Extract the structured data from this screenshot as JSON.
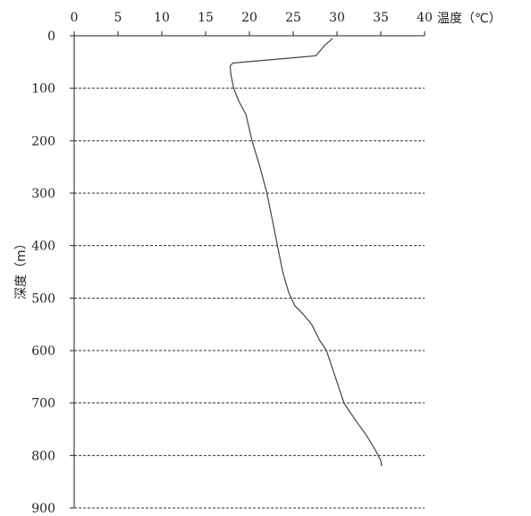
{
  "chart_data": {
    "type": "line",
    "title": "",
    "xlabel": "温度（℃）",
    "ylabel": "深度（m）",
    "x_axis_position": "top",
    "y_axis_inverted": true,
    "xlim": [
      0,
      40
    ],
    "ylim": [
      0,
      900
    ],
    "xticks": [
      0,
      5,
      10,
      15,
      20,
      25,
      30,
      35,
      40
    ],
    "yticks": [
      0,
      100,
      200,
      300,
      400,
      500,
      600,
      700,
      800,
      900
    ],
    "grid": "horizontal dashed",
    "line_color": "#444444",
    "series": [
      {
        "values": [
          {
            "x": 29.5,
            "y": 5
          },
          {
            "x": 28.6,
            "y": 18
          },
          {
            "x": 27.6,
            "y": 38
          },
          {
            "x": 25.0,
            "y": 42
          },
          {
            "x": 18.1,
            "y": 52
          },
          {
            "x": 17.8,
            "y": 58
          },
          {
            "x": 17.9,
            "y": 75
          },
          {
            "x": 18.2,
            "y": 100
          },
          {
            "x": 18.8,
            "y": 125
          },
          {
            "x": 19.6,
            "y": 150
          },
          {
            "x": 20.3,
            "y": 200
          },
          {
            "x": 21.2,
            "y": 250
          },
          {
            "x": 22.0,
            "y": 300
          },
          {
            "x": 22.6,
            "y": 350
          },
          {
            "x": 23.2,
            "y": 400
          },
          {
            "x": 23.8,
            "y": 450
          },
          {
            "x": 24.5,
            "y": 490
          },
          {
            "x": 25.2,
            "y": 515
          },
          {
            "x": 26.1,
            "y": 530
          },
          {
            "x": 27.1,
            "y": 550
          },
          {
            "x": 28.0,
            "y": 580
          },
          {
            "x": 28.8,
            "y": 600
          },
          {
            "x": 29.8,
            "y": 650
          },
          {
            "x": 30.8,
            "y": 700
          },
          {
            "x": 32.0,
            "y": 730
          },
          {
            "x": 33.3,
            "y": 760
          },
          {
            "x": 34.4,
            "y": 790
          },
          {
            "x": 35.0,
            "y": 810
          },
          {
            "x": 35.1,
            "y": 820
          }
        ]
      }
    ]
  }
}
